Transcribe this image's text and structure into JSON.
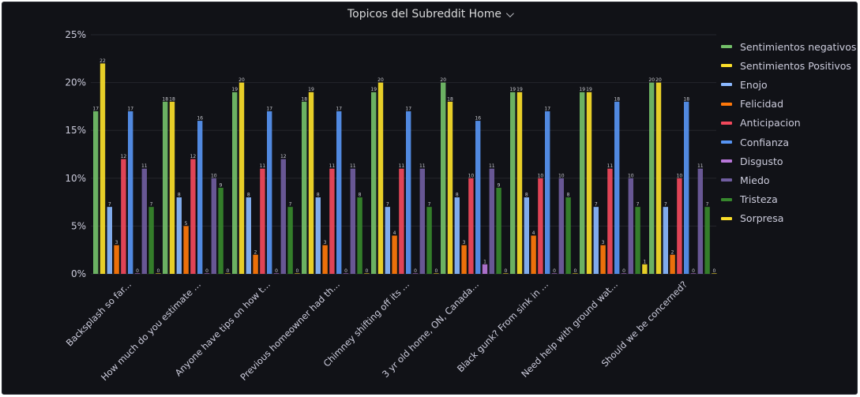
{
  "panel": {
    "title": "Topicos del Subreddit Home",
    "menu_icon": "chevron-down-icon"
  },
  "chart_data": {
    "type": "bar",
    "title": "Topicos del Subreddit Home",
    "xlabel": "",
    "ylabel": "",
    "ylim": [
      0,
      25
    ],
    "y_ticks": [
      "0%",
      "5%",
      "10%",
      "15%",
      "20%",
      "25%"
    ],
    "y_tick_values": [
      0,
      5,
      10,
      15,
      20,
      25
    ],
    "grid": true,
    "legend_position": "right",
    "categories": [
      "Backsplash so far...",
      "How much do you estimate ...",
      "Anyone have tips on how t...",
      "Previous homeowner had th...",
      "Chimney shifting off its ...",
      "3 yr old home, ON, Canada...",
      "Black gunk? From sink in ...",
      "Need help with ground wat...",
      "Should we be concerned?"
    ],
    "series": [
      {
        "name": "Sentimientos negativos",
        "color": "#73bf69",
        "values": [
          17,
          18,
          19,
          18,
          19,
          20,
          19,
          19,
          20
        ]
      },
      {
        "name": "Sentimientos Positivos",
        "color": "#fade2a",
        "values": [
          22,
          18,
          20,
          19,
          20,
          18,
          19,
          19,
          20
        ]
      },
      {
        "name": "Enojo",
        "color": "#8ab8ff",
        "values": [
          7,
          8,
          8,
          8,
          7,
          8,
          8,
          7,
          7
        ]
      },
      {
        "name": "Felicidad",
        "color": "#ff780a",
        "values": [
          3,
          5,
          2,
          3,
          4,
          3,
          4,
          3,
          2
        ]
      },
      {
        "name": "Anticipacion",
        "color": "#f2495c",
        "values": [
          12,
          12,
          11,
          11,
          11,
          10,
          10,
          11,
          10
        ]
      },
      {
        "name": "Confianza",
        "color": "#5794f2",
        "values": [
          17,
          16,
          17,
          17,
          17,
          16,
          17,
          18,
          18
        ]
      },
      {
        "name": "Disgusto",
        "color": "#b877d9",
        "values": [
          0,
          0,
          0,
          0,
          0,
          1,
          0,
          0,
          0
        ]
      },
      {
        "name": "Miedo",
        "color": "#705da0",
        "values": [
          11,
          10,
          12,
          11,
          11,
          11,
          10,
          10,
          11
        ]
      },
      {
        "name": "Tristeza",
        "color": "#37872d",
        "values": [
          7,
          9,
          7,
          8,
          7,
          9,
          8,
          7,
          7
        ]
      },
      {
        "name": "Sorpresa",
        "color": "#fade2a",
        "values": [
          0,
          0,
          0,
          0,
          0,
          0,
          0,
          1,
          0
        ]
      }
    ]
  }
}
